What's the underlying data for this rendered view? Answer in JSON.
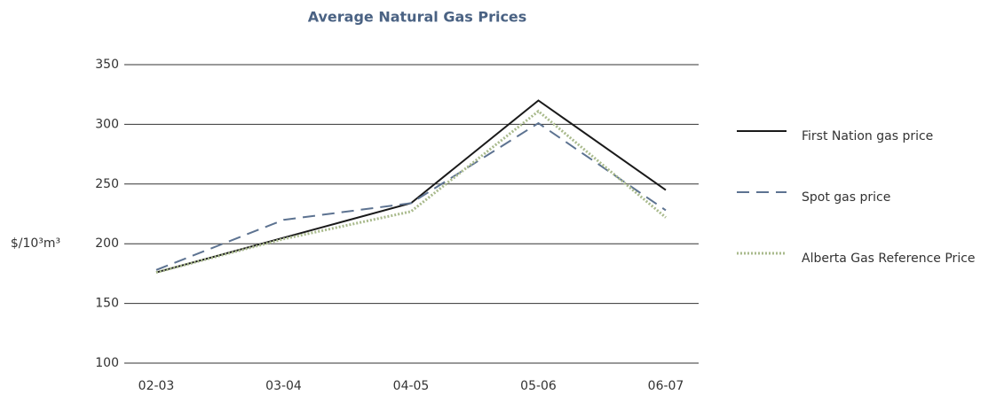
{
  "chart_data": {
    "type": "line",
    "title": "Average Natural Gas Prices",
    "y_label": "$/10³m³",
    "categories": [
      "02-03",
      "03-04",
      "04-05",
      "05-06",
      "06-07"
    ],
    "series": [
      {
        "name": "First Nation gas price",
        "color": "#1a1a1a",
        "style": "solid",
        "values": [
          176,
          205,
          234,
          320,
          245
        ]
      },
      {
        "name": "Spot gas price",
        "color": "#5d7391",
        "style": "dashed",
        "values": [
          178,
          220,
          234,
          301,
          228
        ]
      },
      {
        "name": "Alberta Gas Reference Price",
        "color": "#a9ba8c",
        "style": "dotted",
        "values": [
          176,
          204,
          227,
          311,
          222
        ]
      }
    ],
    "ylim": [
      100,
      350
    ],
    "yticks": [
      100,
      150,
      200,
      250,
      300,
      350
    ],
    "grid": true,
    "legend": "right"
  }
}
